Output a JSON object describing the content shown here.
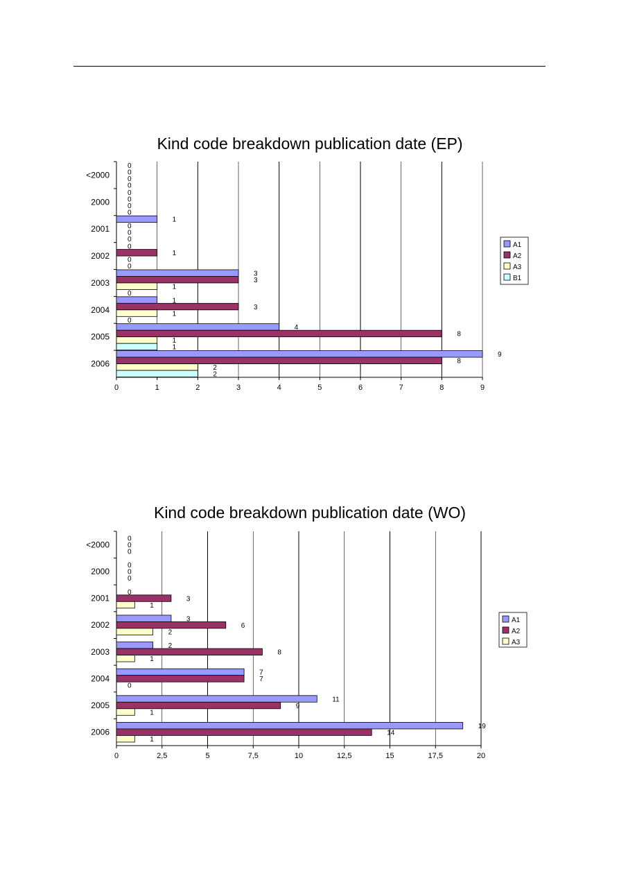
{
  "colors": {
    "A1": "#9999ff",
    "A2": "#993366",
    "A3": "#ffffcc",
    "B1": "#ccffff",
    "grid": "#000000"
  },
  "chart_data": [
    {
      "type": "bar",
      "orientation": "horizontal",
      "title": "Kind code breakdown publication date (EP)",
      "categories": [
        "<2000",
        "2000",
        "2001",
        "2002",
        "2003",
        "2004",
        "2005",
        "2006"
      ],
      "series": [
        {
          "name": "A1",
          "values": [
            0,
            0,
            1,
            0,
            3,
            1,
            4,
            9
          ]
        },
        {
          "name": "A2",
          "values": [
            0,
            0,
            0,
            1,
            3,
            3,
            8,
            8
          ]
        },
        {
          "name": "A3",
          "values": [
            0,
            0,
            0,
            0,
            1,
            1,
            1,
            2
          ]
        },
        {
          "name": "B1",
          "values": [
            0,
            0,
            0,
            0,
            0,
            0,
            1,
            2
          ]
        }
      ],
      "xlim": [
        0,
        9
      ],
      "xticks": [
        "0",
        "1",
        "2",
        "3",
        "4",
        "5",
        "6",
        "7",
        "8",
        "9"
      ],
      "xtick_values": [
        0,
        1,
        2,
        3,
        4,
        5,
        6,
        7,
        8,
        9
      ],
      "grid": true,
      "legend_position": "right"
    },
    {
      "type": "bar",
      "orientation": "horizontal",
      "title": "Kind code breakdown publication date (WO)",
      "categories": [
        "<2000",
        "2000",
        "2001",
        "2002",
        "2003",
        "2004",
        "2005",
        "2006"
      ],
      "series": [
        {
          "name": "A1",
          "values": [
            0,
            0,
            0,
            3,
            2,
            7,
            11,
            19
          ]
        },
        {
          "name": "A2",
          "values": [
            0,
            0,
            3,
            6,
            8,
            7,
            9,
            14
          ]
        },
        {
          "name": "A3",
          "values": [
            0,
            0,
            1,
            2,
            1,
            0,
            1,
            1
          ]
        }
      ],
      "xlim": [
        0,
        20
      ],
      "xticks": [
        "0",
        "2,5",
        "5",
        "7,5",
        "10",
        "12,5",
        "15",
        "17,5",
        "20"
      ],
      "xtick_values": [
        0,
        2.5,
        5,
        7.5,
        10,
        12.5,
        15,
        17.5,
        20
      ],
      "grid": true,
      "legend_position": "right"
    }
  ]
}
